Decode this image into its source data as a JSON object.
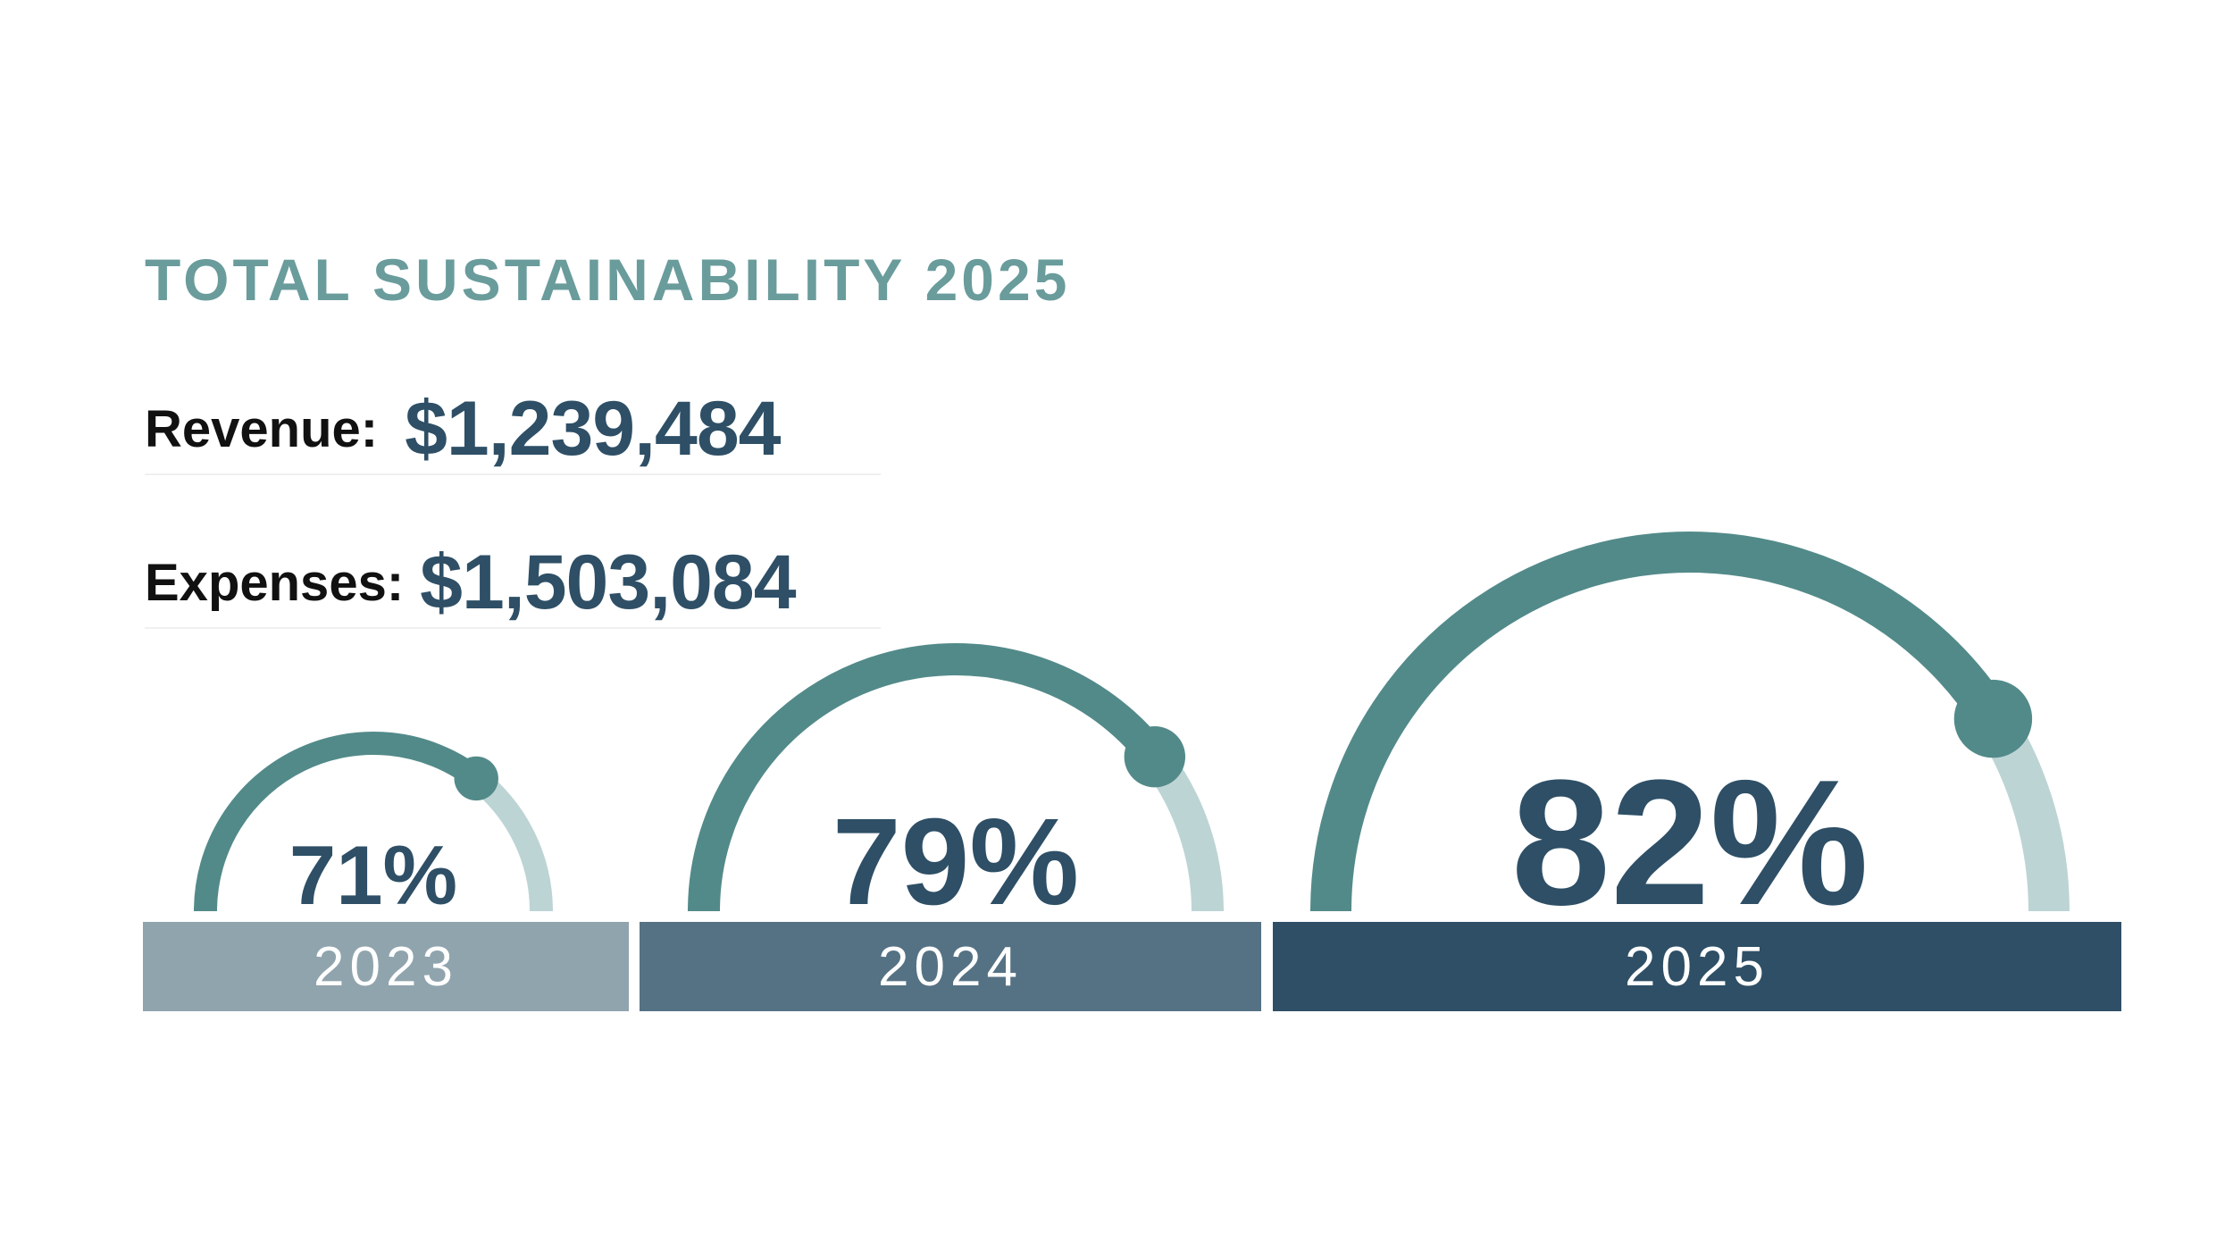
{
  "title": "TOTAL SUSTAINABILITY 2025",
  "stats": {
    "revenue": {
      "label": "Revenue:",
      "value": "$1,239,484"
    },
    "expenses": {
      "label": "Expenses:",
      "value": "$1,503,084"
    }
  },
  "colors": {
    "title": "#6a9c9c",
    "value": "#2e4f66",
    "arc_fill": "#528a89",
    "arc_track": "#bdd4d5",
    "bar_2023": "#90a4ad",
    "bar_2024": "#557284",
    "bar_2025": "#2e4f66"
  },
  "chart_data": {
    "type": "gauge",
    "title": "TOTAL SUSTAINABILITY 2025",
    "categories": [
      "2023",
      "2024",
      "2025"
    ],
    "values": [
      71,
      79,
      82
    ],
    "value_labels": [
      "71%",
      "79%",
      "82%"
    ],
    "unit": "%",
    "range": [
      0,
      100
    ]
  }
}
